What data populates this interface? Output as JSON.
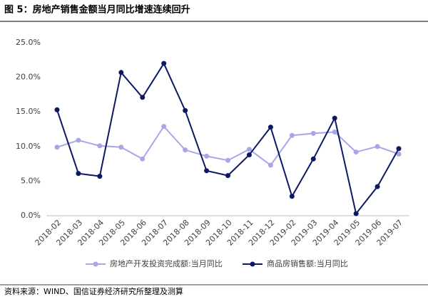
{
  "chart_data": {
    "type": "line",
    "title": "图 5：房地产销售金额当月同比增速连续回升",
    "source": "资料来源：WIND、国信证券经济研究所整理及测算",
    "categories": [
      "2018-02",
      "2018-03",
      "2018-04",
      "2018-05",
      "2018-06",
      "2018-07",
      "2018-08",
      "2018-09",
      "2018-10",
      "2018-11",
      "2018-12",
      "2019-02",
      "2019-03",
      "2019-04",
      "2019-05",
      "2019-06",
      "2019-07"
    ],
    "series": [
      {
        "name": "房地产开发投资完成额:当月同比",
        "color": "#a9a6e6",
        "values": [
          9.9,
          10.9,
          10.1,
          9.9,
          8.2,
          12.9,
          9.5,
          8.6,
          8.0,
          9.6,
          7.3,
          11.6,
          11.9,
          12.1,
          9.2,
          10.0,
          8.9
        ]
      },
      {
        "name": "商品房销售额:当月同比",
        "color": "#0d1863",
        "values": [
          15.3,
          6.1,
          5.7,
          20.7,
          17.1,
          22.0,
          15.2,
          6.5,
          5.8,
          8.8,
          12.8,
          2.8,
          8.2,
          14.1,
          0.3,
          4.2,
          9.7
        ]
      }
    ],
    "ylim": [
      0,
      25
    ],
    "yticks": [
      {
        "value": 0,
        "label": "0.0%"
      },
      {
        "value": 5,
        "label": "5.0%"
      },
      {
        "value": 10,
        "label": "10.0%"
      },
      {
        "value": 15,
        "label": "15.0%"
      },
      {
        "value": 20,
        "label": "20.0%"
      },
      {
        "value": 25,
        "label": "25.0%"
      }
    ],
    "grid": false
  }
}
